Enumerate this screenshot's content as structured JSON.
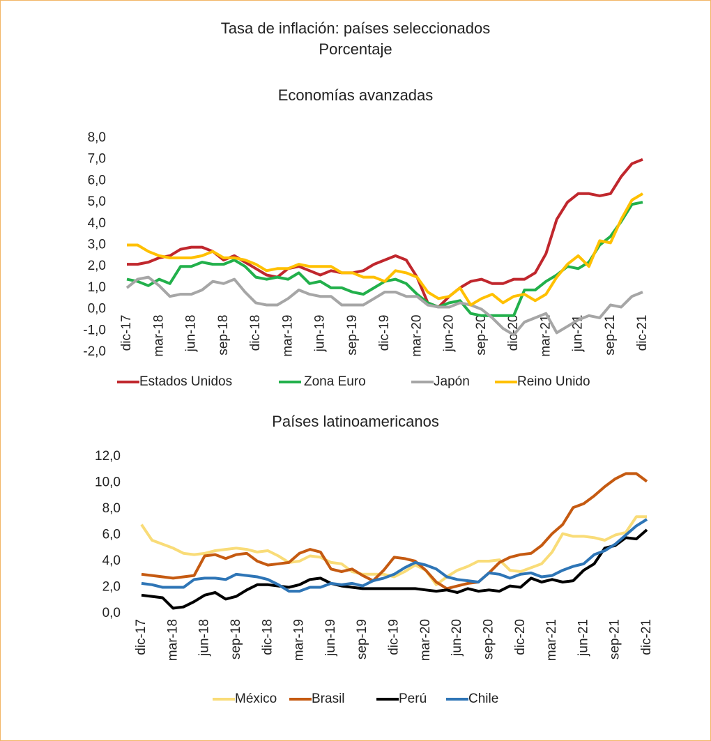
{
  "title": "Tasa de inflación: países seleccionados",
  "subtitle": "Porcentaje",
  "chart_data": [
    {
      "type": "line",
      "title": "Economías avanzadas",
      "categories": [
        "dic-17",
        null,
        null,
        "mar-18",
        null,
        null,
        "jun-18",
        null,
        null,
        "sep-18",
        null,
        null,
        "dic-18",
        null,
        null,
        "mar-19",
        null,
        null,
        "jun-19",
        null,
        null,
        "sep-19",
        null,
        null,
        "dic-19",
        null,
        null,
        "mar-20",
        null,
        null,
        "jun-20",
        null,
        null,
        "sep-20",
        null,
        null,
        "dic-20",
        null,
        null,
        "mar-21",
        null,
        null,
        "jun-21",
        null,
        null,
        "sep-21",
        null,
        null,
        "dic-21"
      ],
      "ylim": [
        -2,
        8
      ],
      "yticks": [
        {
          "value": -2,
          "label": "-2,0"
        },
        {
          "value": -1,
          "label": "-1,0"
        },
        {
          "value": 0,
          "label": "0,0"
        },
        {
          "value": 1,
          "label": "1,0"
        },
        {
          "value": 2,
          "label": "2,0"
        },
        {
          "value": 3,
          "label": "3,0"
        },
        {
          "value": 4,
          "label": "4,0"
        },
        {
          "value": 5,
          "label": "5,0"
        },
        {
          "value": 6,
          "label": "6,0"
        },
        {
          "value": 7,
          "label": "7,0"
        },
        {
          "value": 8,
          "label": "8,0"
        }
      ],
      "grid": false,
      "legend": "bottom",
      "series": [
        {
          "name": "Estados Unidos",
          "color": "#c0272d",
          "values": [
            2.1,
            2.1,
            2.2,
            2.4,
            2.5,
            2.8,
            2.9,
            2.9,
            2.7,
            2.3,
            2.5,
            2.2,
            1.9,
            1.6,
            1.5,
            1.9,
            2.0,
            1.8,
            1.6,
            1.8,
            1.7,
            1.7,
            1.8,
            2.1,
            2.3,
            2.5,
            2.3,
            1.5,
            0.3,
            0.1,
            0.6,
            1.0,
            1.3,
            1.4,
            1.2,
            1.2,
            1.4,
            1.4,
            1.7,
            2.6,
            4.2,
            5.0,
            5.4,
            5.4,
            5.3,
            5.4,
            6.2,
            6.8,
            7.0
          ]
        },
        {
          "name": "Zona Euro",
          "color": "#22b04b",
          "values": [
            1.4,
            1.3,
            1.1,
            1.4,
            1.2,
            2.0,
            2.0,
            2.2,
            2.1,
            2.1,
            2.3,
            2.0,
            1.5,
            1.4,
            1.5,
            1.4,
            1.7,
            1.2,
            1.3,
            1.0,
            1.0,
            0.8,
            0.7,
            1.0,
            1.3,
            1.4,
            1.2,
            0.7,
            0.3,
            0.1,
            0.3,
            0.4,
            -0.2,
            -0.3,
            -0.3,
            -0.3,
            -0.3,
            0.9,
            0.9,
            1.3,
            1.6,
            2.0,
            1.9,
            2.2,
            3.0,
            3.4,
            4.1,
            4.9,
            5.0
          ]
        },
        {
          "name": "Japón",
          "color": "#a6a6a6",
          "values": [
            1.0,
            1.4,
            1.5,
            1.1,
            0.6,
            0.7,
            0.7,
            0.9,
            1.3,
            1.2,
            1.4,
            0.8,
            0.3,
            0.2,
            0.2,
            0.5,
            0.9,
            0.7,
            0.6,
            0.6,
            0.2,
            0.2,
            0.2,
            0.5,
            0.8,
            0.8,
            0.6,
            0.6,
            0.2,
            0.1,
            0.1,
            0.3,
            0.2,
            0.0,
            -0.4,
            -0.9,
            -1.2,
            -0.6,
            -0.4,
            -0.2,
            -1.1,
            -0.8,
            -0.5,
            -0.3,
            -0.4,
            0.2,
            0.1,
            0.6,
            0.8
          ]
        },
        {
          "name": "Reino Unido",
          "color": "#ffc000",
          "values": [
            3.0,
            3.0,
            2.7,
            2.5,
            2.4,
            2.4,
            2.4,
            2.5,
            2.7,
            2.4,
            2.4,
            2.3,
            2.1,
            1.8,
            1.9,
            1.9,
            2.1,
            2.0,
            2.0,
            2.0,
            1.7,
            1.7,
            1.5,
            1.5,
            1.3,
            1.8,
            1.7,
            1.5,
            0.8,
            0.5,
            0.6,
            1.0,
            0.2,
            0.5,
            0.7,
            0.3,
            0.6,
            0.7,
            0.4,
            0.7,
            1.5,
            2.1,
            2.5,
            2.0,
            3.2,
            3.1,
            4.2,
            5.1,
            5.4
          ]
        }
      ]
    },
    {
      "type": "line",
      "title": "Países latinoamericanos",
      "categories": [
        "dic-17",
        null,
        null,
        "mar-18",
        null,
        null,
        "jun-18",
        null,
        null,
        "sep-18",
        null,
        null,
        "dic-18",
        null,
        null,
        "mar-19",
        null,
        null,
        "jun-19",
        null,
        null,
        "sep-19",
        null,
        null,
        "dic-19",
        null,
        null,
        "mar-20",
        null,
        null,
        "jun-20",
        null,
        null,
        "sep-20",
        null,
        null,
        "dic-20",
        null,
        null,
        "mar-21",
        null,
        null,
        "jun-21",
        null,
        null,
        "sep-21",
        null,
        null,
        "dic-21"
      ],
      "ylim": [
        0,
        12
      ],
      "yticks": [
        {
          "value": 0,
          "label": "0,0"
        },
        {
          "value": 2,
          "label": "2,0"
        },
        {
          "value": 4,
          "label": "4,0"
        },
        {
          "value": 6,
          "label": "6,0"
        },
        {
          "value": 8,
          "label": "8,0"
        },
        {
          "value": 10,
          "label": "10,0"
        },
        {
          "value": 12,
          "label": "12,0"
        }
      ],
      "grid": false,
      "legend": "bottom",
      "series": [
        {
          "name": "México",
          "color": "#f9dc78",
          "values": [
            6.8,
            5.6,
            5.3,
            5.0,
            4.6,
            4.5,
            4.6,
            4.8,
            4.9,
            5.0,
            4.9,
            4.7,
            4.8,
            4.4,
            3.9,
            4.0,
            4.4,
            4.3,
            3.9,
            3.8,
            3.2,
            3.0,
            3.0,
            3.0,
            2.8,
            3.2,
            3.7,
            3.3,
            2.2,
            2.8,
            3.3,
            3.6,
            4.0,
            4.0,
            4.1,
            3.3,
            3.2,
            3.5,
            3.8,
            4.7,
            6.1,
            5.9,
            5.9,
            5.8,
            5.6,
            6.0,
            6.2,
            7.4,
            7.4
          ]
        },
        {
          "name": "Brasil",
          "color": "#c55a11",
          "values": [
            3.0,
            2.9,
            2.8,
            2.7,
            2.8,
            2.9,
            4.4,
            4.5,
            4.2,
            4.5,
            4.6,
            4.0,
            3.7,
            3.8,
            3.9,
            4.6,
            4.9,
            4.7,
            3.4,
            3.2,
            3.4,
            2.9,
            2.5,
            3.3,
            4.3,
            4.2,
            4.0,
            3.3,
            2.4,
            1.9,
            2.1,
            2.3,
            2.4,
            3.1,
            3.9,
            4.3,
            4.5,
            4.6,
            5.2,
            6.1,
            6.8,
            8.1,
            8.4,
            9.0,
            9.7,
            10.3,
            10.7,
            10.7,
            10.1
          ]
        },
        {
          "name": "Perú",
          "color": "#000000",
          "values": [
            1.4,
            1.3,
            1.2,
            0.4,
            0.5,
            0.9,
            1.4,
            1.6,
            1.1,
            1.3,
            1.8,
            2.2,
            2.2,
            2.1,
            2.0,
            2.2,
            2.6,
            2.7,
            2.3,
            2.1,
            2.0,
            1.9,
            1.9,
            1.9,
            1.9,
            1.9,
            1.9,
            1.8,
            1.7,
            1.8,
            1.6,
            1.9,
            1.7,
            1.8,
            1.7,
            2.1,
            2.0,
            2.7,
            2.4,
            2.6,
            2.4,
            2.5,
            3.3,
            3.8,
            5.0,
            5.2,
            5.8,
            5.7,
            6.4
          ]
        },
        {
          "name": "Chile",
          "color": "#2e75b6",
          "values": [
            2.3,
            2.2,
            2.0,
            2.0,
            2.0,
            2.6,
            2.7,
            2.7,
            2.6,
            3.0,
            2.9,
            2.8,
            2.6,
            2.2,
            1.7,
            1.7,
            2.0,
            2.0,
            2.3,
            2.2,
            2.3,
            2.1,
            2.5,
            2.7,
            3.0,
            3.5,
            3.9,
            3.7,
            3.4,
            2.8,
            2.6,
            2.5,
            2.4,
            3.1,
            3.0,
            2.7,
            3.0,
            3.1,
            2.8,
            2.9,
            3.3,
            3.6,
            3.8,
            4.5,
            4.8,
            5.3,
            6.0,
            6.7,
            7.2
          ]
        }
      ]
    }
  ]
}
